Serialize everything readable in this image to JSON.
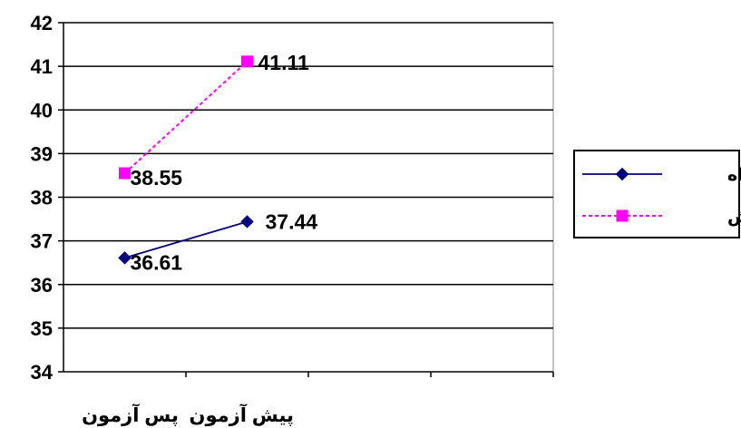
{
  "chart_data": {
    "type": "line",
    "categories": [
      "پیش آزمون",
      "پس آزمون"
    ],
    "series": [
      {
        "name": "گواه",
        "values": [
          36.61,
          37.44
        ],
        "color": "#000080",
        "line_style": "solid",
        "marker": "diamond"
      },
      {
        "name": "آزمایش",
        "values": [
          38.55,
          41.11
        ],
        "color": "#ff00ff",
        "line_style": "dotted",
        "marker": "square"
      }
    ],
    "data_labels": [
      "36.61",
      "37.44",
      "38.55",
      "41.11"
    ],
    "ylim": [
      34,
      42
    ],
    "y_ticks": [
      34,
      35,
      36,
      37,
      38,
      39,
      40,
      41,
      42
    ],
    "grid": true,
    "legend": "right",
    "title": "",
    "xlabel": "",
    "ylabel": ""
  }
}
